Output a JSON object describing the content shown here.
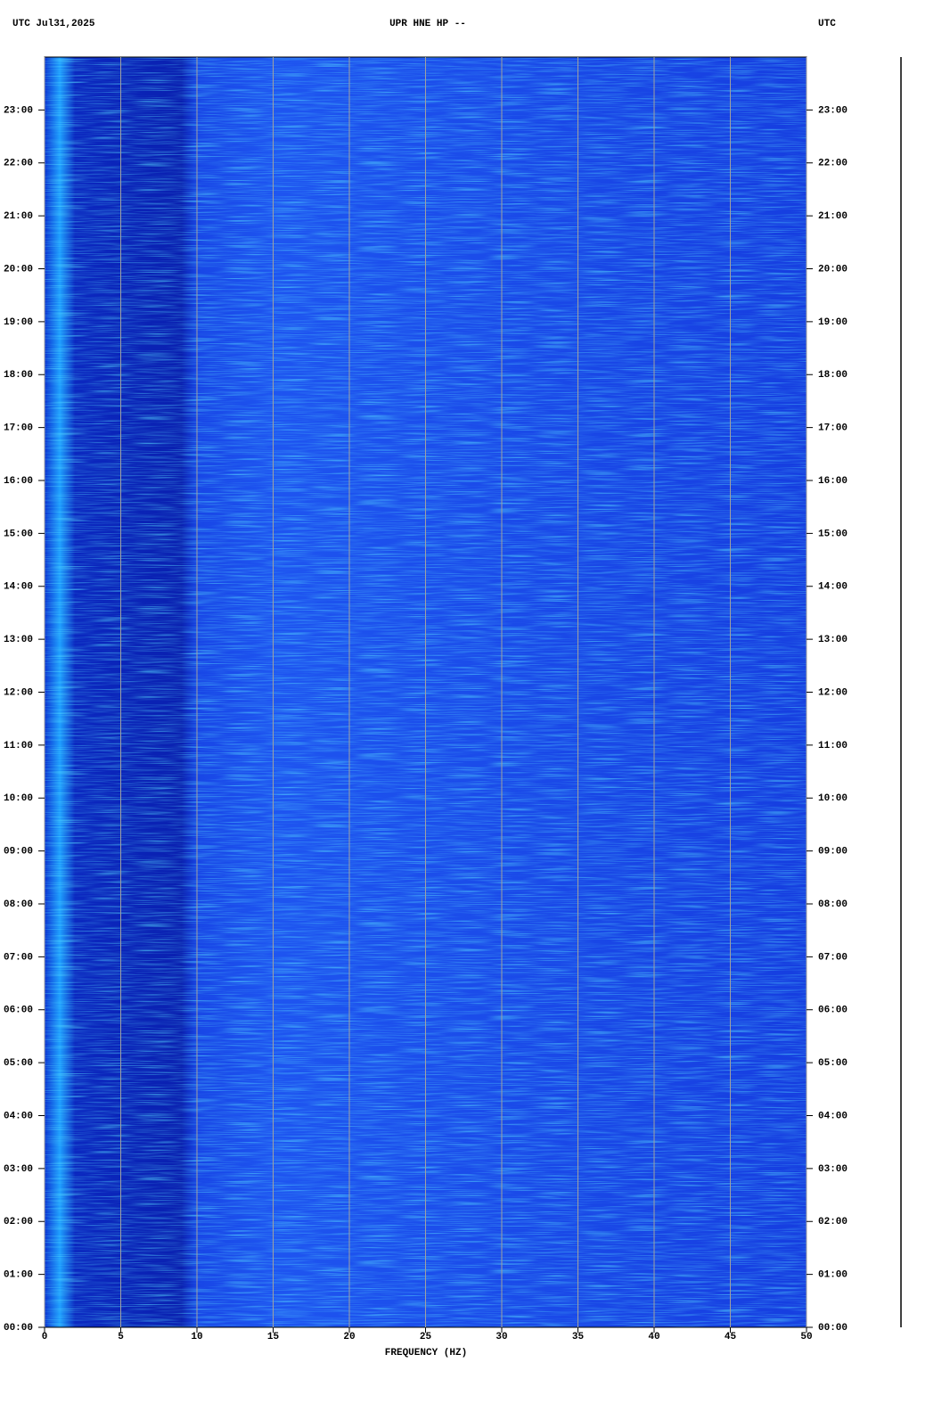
{
  "chart_data": {
    "type": "spectrogram",
    "header_left": "UTC  Jul31,2025",
    "title": "UPR HNE HP --",
    "header_right": "UTC",
    "x_label": "FREQUENCY (HZ)",
    "xlim": [
      0,
      50
    ],
    "xticks": [
      0,
      5,
      10,
      15,
      20,
      25,
      30,
      35,
      40,
      45,
      50
    ],
    "ylim": [
      0,
      24
    ],
    "yticks": [
      {
        "value": 0,
        "label": "00:00"
      },
      {
        "value": 1,
        "label": "01:00"
      },
      {
        "value": 2,
        "label": "02:00"
      },
      {
        "value": 3,
        "label": "03:00"
      },
      {
        "value": 4,
        "label": "04:00"
      },
      {
        "value": 5,
        "label": "05:00"
      },
      {
        "value": 6,
        "label": "06:00"
      },
      {
        "value": 7,
        "label": "07:00"
      },
      {
        "value": 8,
        "label": "08:00"
      },
      {
        "value": 9,
        "label": "09:00"
      },
      {
        "value": 10,
        "label": "10:00"
      },
      {
        "value": 11,
        "label": "11:00"
      },
      {
        "value": 12,
        "label": "12:00"
      },
      {
        "value": 13,
        "label": "13:00"
      },
      {
        "value": 14,
        "label": "14:00"
      },
      {
        "value": 15,
        "label": "15:00"
      },
      {
        "value": 16,
        "label": "16:00"
      },
      {
        "value": 17,
        "label": "17:00"
      },
      {
        "value": 18,
        "label": "18:00"
      },
      {
        "value": 19,
        "label": "19:00"
      },
      {
        "value": 20,
        "label": "20:00"
      },
      {
        "value": 21,
        "label": "21:00"
      },
      {
        "value": 22,
        "label": "22:00"
      },
      {
        "value": 23,
        "label": "23:00"
      }
    ],
    "grid": true,
    "grid_color": "#a0a0a0"
  }
}
